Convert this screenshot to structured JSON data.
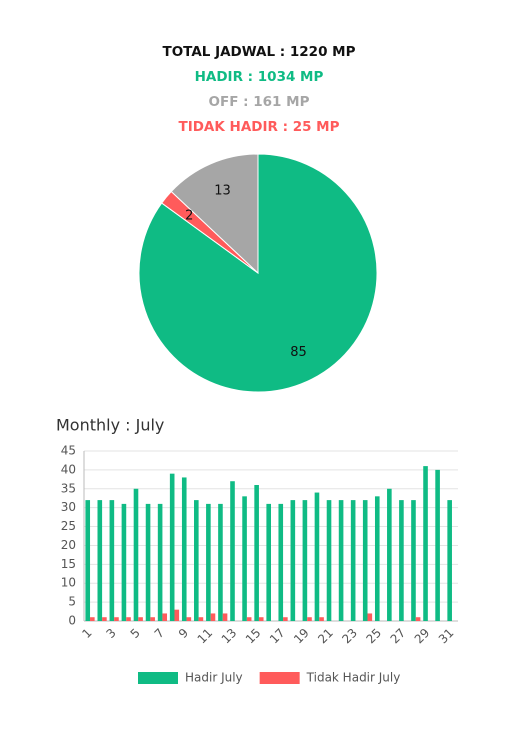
{
  "header": {
    "total": "TOTAL JADWAL : 1220 MP",
    "hadir": "HADIR : 1034 MP",
    "off": "OFF : 161 MP",
    "tidak_hadir": "TIDAK HADIR : 25 MP"
  },
  "chart_data": [
    {
      "type": "pie",
      "values": [
        85,
        2,
        13
      ],
      "colors": [
        "#0fbb84",
        "#ff5b5b",
        "#a6a6a6"
      ]
    },
    {
      "type": "bar",
      "title": "Monthly : July",
      "categories": [
        "1",
        null,
        "3",
        null,
        "5",
        null,
        "7",
        null,
        "9",
        null,
        "11",
        null,
        "13",
        null,
        "15",
        null,
        "17",
        null,
        "19",
        null,
        "21",
        null,
        "23",
        null,
        "25",
        null,
        "27",
        null,
        "29",
        null,
        "31"
      ],
      "series": [
        {
          "name": "Hadir July",
          "color": "#0fbb84",
          "values": [
            32,
            32,
            32,
            31,
            35,
            31,
            31,
            39,
            38,
            32,
            31,
            31,
            37,
            33,
            36,
            31,
            31,
            32,
            32,
            34,
            32,
            32,
            32,
            32,
            33,
            35,
            32,
            32,
            41,
            40,
            32
          ]
        },
        {
          "name": "Tidak Hadir July",
          "color": "#ff5b5b",
          "values": [
            1,
            1,
            1,
            1,
            1,
            1,
            2,
            3,
            1,
            1,
            2,
            2,
            0,
            1,
            1,
            0,
            1,
            0,
            1,
            1,
            0,
            0,
            0,
            2,
            0,
            0,
            0,
            1,
            0,
            0,
            0
          ]
        }
      ],
      "ylim": [
        0,
        45
      ],
      "yticks": [
        0,
        5,
        10,
        15,
        20,
        25,
        30,
        35,
        40,
        45
      ],
      "grid": true
    }
  ]
}
